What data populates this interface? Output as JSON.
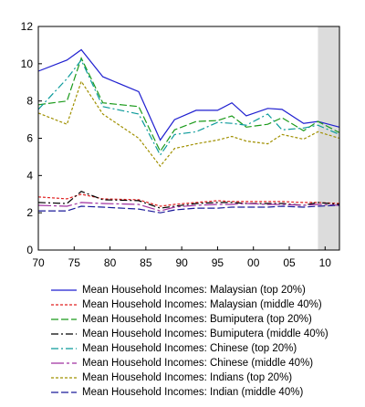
{
  "chart_data": {
    "type": "line",
    "title": "",
    "xlabel": "",
    "ylabel": "",
    "xlim": [
      1970,
      2012
    ],
    "ylim": [
      0,
      12
    ],
    "x_tick_values": [
      1970,
      1975,
      1980,
      1985,
      1990,
      1995,
      2000,
      2005,
      2010
    ],
    "x_tick_labels": [
      "70",
      "75",
      "80",
      "85",
      "90",
      "95",
      "00",
      "05",
      "10"
    ],
    "y_ticks": [
      0,
      2,
      4,
      6,
      8,
      10,
      12
    ],
    "shaded_region": [
      2009,
      2012
    ],
    "grid": false,
    "legend_position": "bottom",
    "x": [
      1970,
      1974,
      1976,
      1979,
      1984,
      1987,
      1989,
      1992,
      1995,
      1997,
      1999,
      2002,
      2004,
      2007,
      2009,
      2012
    ],
    "series": [
      {
        "name": "Mean Household Incomes: Malaysian (top 20%)",
        "color": "#1f1fd0",
        "dash": "",
        "values": [
          9.6,
          10.2,
          10.75,
          9.3,
          8.5,
          5.9,
          7.0,
          7.5,
          7.5,
          7.9,
          7.2,
          7.6,
          7.55,
          6.8,
          6.9,
          6.6
        ]
      },
      {
        "name": "Mean Household Incomes: Malaysian (middle 40%)",
        "color": "#e02020",
        "dash": "3,2",
        "values": [
          2.85,
          2.75,
          3.0,
          2.75,
          2.7,
          2.35,
          2.45,
          2.55,
          2.65,
          2.6,
          2.6,
          2.6,
          2.6,
          2.55,
          2.55,
          2.5
        ]
      },
      {
        "name": "Mean Household Incomes: Bumiputera (top 20%)",
        "color": "#1a9a1a",
        "dash": "8,3",
        "values": [
          7.8,
          8.0,
          10.3,
          7.9,
          7.7,
          5.3,
          6.45,
          6.9,
          6.95,
          7.2,
          6.6,
          6.75,
          7.1,
          6.4,
          6.9,
          6.3
        ]
      },
      {
        "name": "Mean Household Incomes: Bumiputera (middle 40%)",
        "color": "#000000",
        "dash": "8,3,2,3",
        "values": [
          2.55,
          2.5,
          3.15,
          2.7,
          2.65,
          2.25,
          2.35,
          2.5,
          2.55,
          2.55,
          2.5,
          2.5,
          2.5,
          2.4,
          2.55,
          2.45
        ]
      },
      {
        "name": "Mean Household Incomes: Chinese (top 20%)",
        "color": "#0a9a9a",
        "dash": "8,3,2,3",
        "values": [
          7.55,
          9.2,
          10.2,
          7.7,
          7.3,
          5.1,
          6.2,
          6.35,
          6.85,
          6.8,
          6.7,
          7.3,
          6.45,
          6.55,
          6.7,
          6.2
        ]
      },
      {
        "name": "Mean Household Incomes: Chinese (middle 40%)",
        "color": "#a030a0",
        "dash": "14,3,3,3",
        "values": [
          2.4,
          2.35,
          2.55,
          2.5,
          2.45,
          2.1,
          2.3,
          2.4,
          2.45,
          2.45,
          2.5,
          2.45,
          2.45,
          2.4,
          2.45,
          2.4
        ]
      },
      {
        "name": "Mean Household Incomes: Indians (top 20%)",
        "color": "#a09000",
        "dash": "3,2",
        "values": [
          7.35,
          6.75,
          9.05,
          7.3,
          6.0,
          4.5,
          5.45,
          5.7,
          5.9,
          6.1,
          5.85,
          5.7,
          6.2,
          5.95,
          6.35,
          6.0
        ]
      },
      {
        "name": "Mean Household Incomes: Indian (middle 40%)",
        "color": "#1a1a9a",
        "dash": "8,3",
        "values": [
          2.1,
          2.1,
          2.35,
          2.3,
          2.2,
          2.0,
          2.15,
          2.25,
          2.25,
          2.3,
          2.3,
          2.3,
          2.35,
          2.3,
          2.35,
          2.4
        ]
      }
    ]
  }
}
